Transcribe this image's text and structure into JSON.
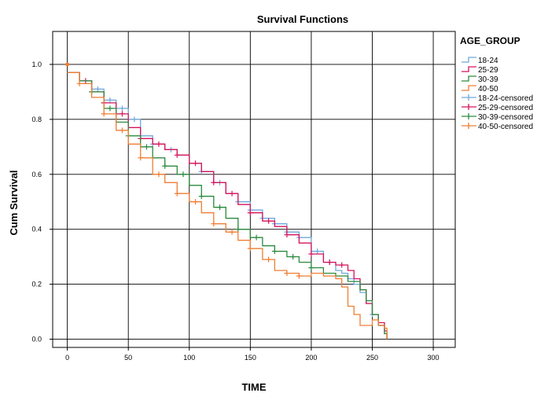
{
  "chart_data": {
    "type": "line",
    "title": "Survival Functions",
    "xlabel": "TIME",
    "ylabel": "Cum Survival",
    "xlim": [
      -12,
      318
    ],
    "ylim": [
      -0.03,
      1.12
    ],
    "x_ticks": [
      "0",
      "50",
      "100",
      "150",
      "200",
      "250",
      "300"
    ],
    "y_ticks": [
      "0.0",
      "0.2",
      "0.4",
      "0.6",
      "0.8",
      "1.0"
    ],
    "grid": true,
    "legend": {
      "title": "AGE_GROUP",
      "position": "right",
      "entries": [
        {
          "label": "18-24",
          "color": "#6fa8dc",
          "kind": "line"
        },
        {
          "label": "25-29",
          "color": "#d6135a",
          "kind": "line"
        },
        {
          "label": "30-39",
          "color": "#2b8a3e",
          "kind": "line"
        },
        {
          "label": "40-50",
          "color": "#f07d32",
          "kind": "line"
        },
        {
          "label": "18-24-censored",
          "color": "#6fa8dc",
          "kind": "censor"
        },
        {
          "label": "25-29-censored",
          "color": "#d6135a",
          "kind": "censor"
        },
        {
          "label": "30-39-censored",
          "color": "#2b8a3e",
          "kind": "censor"
        },
        {
          "label": "40-50-censored",
          "color": "#f07d32",
          "kind": "censor"
        }
      ]
    },
    "series": [
      {
        "name": "18-24",
        "color": "#6fa8dc",
        "x": [
          0,
          10,
          20,
          30,
          40,
          50,
          60,
          70,
          80,
          90,
          100,
          110,
          120,
          130,
          140,
          150,
          160,
          170,
          180,
          190,
          200,
          210,
          220,
          225,
          230,
          235,
          240,
          245,
          250,
          255,
          260,
          262
        ],
        "y": [
          0.97,
          0.94,
          0.91,
          0.87,
          0.84,
          0.8,
          0.74,
          0.71,
          0.69,
          0.67,
          0.64,
          0.61,
          0.57,
          0.53,
          0.5,
          0.47,
          0.44,
          0.42,
          0.39,
          0.37,
          0.32,
          0.28,
          0.25,
          0.24,
          0.22,
          0.2,
          0.17,
          0.13,
          0.09,
          0.05,
          0.02,
          0.0
        ],
        "censored_x": [
          25,
          35,
          45,
          55,
          70,
          85,
          110,
          125,
          140,
          150,
          160,
          170,
          180,
          190,
          205,
          215,
          250
        ]
      },
      {
        "name": "25-29",
        "color": "#d6135a",
        "x": [
          0,
          10,
          20,
          30,
          40,
          50,
          60,
          70,
          80,
          90,
          100,
          110,
          120,
          130,
          140,
          150,
          160,
          170,
          180,
          190,
          200,
          210,
          220,
          230,
          235,
          240,
          245,
          250,
          255,
          260,
          262
        ],
        "y": [
          0.97,
          0.94,
          0.9,
          0.86,
          0.82,
          0.77,
          0.73,
          0.71,
          0.69,
          0.67,
          0.64,
          0.61,
          0.57,
          0.53,
          0.49,
          0.46,
          0.43,
          0.41,
          0.38,
          0.35,
          0.31,
          0.28,
          0.27,
          0.25,
          0.22,
          0.18,
          0.13,
          0.09,
          0.06,
          0.03,
          0.0
        ],
        "censored_x": [
          15,
          30,
          45,
          60,
          75,
          90,
          105,
          120,
          135,
          150,
          165,
          180,
          200,
          215,
          225
        ]
      },
      {
        "name": "30-39",
        "color": "#2b8a3e",
        "x": [
          0,
          10,
          20,
          30,
          40,
          50,
          60,
          70,
          80,
          90,
          100,
          110,
          120,
          130,
          140,
          150,
          160,
          170,
          180,
          190,
          200,
          210,
          220,
          230,
          240,
          245,
          250,
          255,
          260,
          262
        ],
        "y": [
          0.97,
          0.94,
          0.9,
          0.84,
          0.79,
          0.74,
          0.7,
          0.66,
          0.63,
          0.6,
          0.56,
          0.52,
          0.48,
          0.44,
          0.4,
          0.37,
          0.34,
          0.32,
          0.3,
          0.28,
          0.26,
          0.24,
          0.23,
          0.21,
          0.18,
          0.14,
          0.09,
          0.05,
          0.02,
          0.0
        ],
        "censored_x": [
          20,
          35,
          50,
          65,
          80,
          95,
          110,
          125,
          140,
          155,
          170,
          185,
          200
        ]
      },
      {
        "name": "40-50",
        "color": "#f07d32",
        "x": [
          0,
          10,
          20,
          30,
          40,
          50,
          60,
          70,
          80,
          90,
          100,
          110,
          120,
          130,
          140,
          150,
          160,
          170,
          180,
          190,
          200,
          210,
          220,
          225,
          230,
          235,
          240,
          245,
          250,
          255,
          260,
          262
        ],
        "y": [
          0.97,
          0.93,
          0.88,
          0.82,
          0.76,
          0.71,
          0.66,
          0.6,
          0.57,
          0.53,
          0.5,
          0.46,
          0.42,
          0.39,
          0.36,
          0.33,
          0.29,
          0.25,
          0.24,
          0.23,
          0.24,
          0.23,
          0.22,
          0.19,
          0.12,
          0.09,
          0.05,
          0.05,
          0.07,
          0.05,
          0.04,
          0.0
        ],
        "censored_x": [
          10,
          30,
          45,
          60,
          75,
          90,
          105,
          120,
          135,
          150,
          165,
          180,
          190
        ]
      }
    ]
  }
}
